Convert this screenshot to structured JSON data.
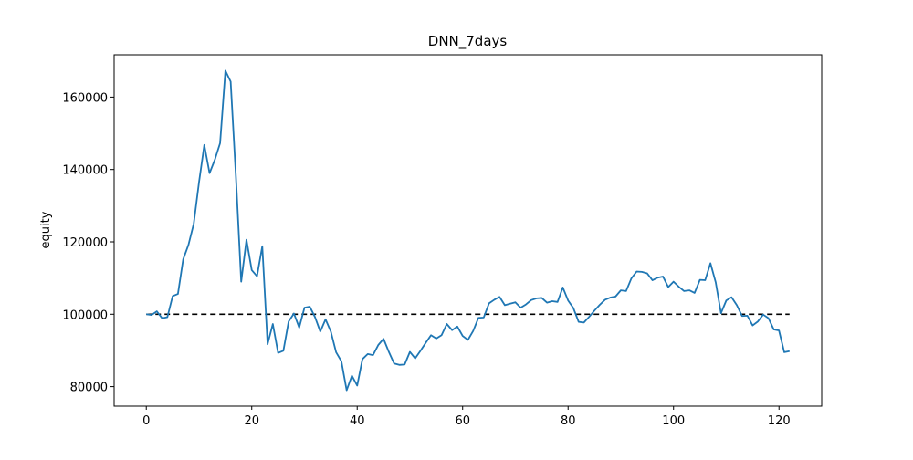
{
  "chart_data": {
    "type": "line",
    "title": "DNN_7days",
    "y_label": "equity",
    "x": [
      0,
      1,
      2,
      3,
      4,
      5,
      6,
      7,
      8,
      9,
      10,
      11,
      12,
      13,
      14,
      15,
      16,
      17,
      18,
      19,
      20,
      21,
      22,
      23,
      24,
      25,
      26,
      27,
      28,
      29,
      30,
      31,
      32,
      33,
      34,
      35,
      36,
      37,
      38,
      39,
      40,
      41,
      42,
      43,
      44,
      45,
      46,
      47,
      48,
      49,
      50,
      51,
      52,
      53,
      54,
      55,
      56,
      57,
      58,
      59,
      60,
      61,
      62,
      63,
      64,
      65,
      66,
      67,
      68,
      69,
      70,
      71,
      72,
      73,
      74,
      75,
      76,
      77,
      78,
      79,
      80,
      81,
      82,
      83,
      84,
      85,
      86,
      87,
      88,
      89,
      90,
      91,
      92,
      93,
      94,
      95,
      96,
      97,
      98,
      99,
      100,
      101,
      102,
      103,
      104,
      105,
      106,
      107,
      108,
      109,
      110,
      111,
      112,
      113,
      114,
      115,
      116,
      117,
      118,
      119,
      120,
      121,
      122
    ],
    "series": [
      {
        "color": "#1f77b4",
        "values": [
          100000,
          99800,
          100800,
          98900,
          99200,
          105000,
          105600,
          115200,
          119200,
          125000,
          136500,
          146800,
          139000,
          142700,
          147300,
          167300,
          164300,
          138000,
          109000,
          120600,
          112200,
          110500,
          118800,
          91700,
          97300,
          89300,
          89900,
          98000,
          100200,
          96300,
          101800,
          102100,
          99200,
          95200,
          98600,
          95200,
          89500,
          87000,
          79000,
          83000,
          80300,
          87600,
          89000,
          88700,
          91500,
          93200,
          89600,
          86400,
          86000,
          86100,
          89600,
          87800,
          89900,
          92100,
          94200,
          93300,
          94200,
          97300,
          95600,
          96600,
          94000,
          92900,
          95400,
          99000,
          99100,
          103000,
          104000,
          104800,
          102500,
          102900,
          103300,
          101800,
          102700,
          103900,
          104400,
          104500,
          103200,
          103600,
          103400,
          107400,
          103800,
          101700,
          97900,
          97700,
          99300,
          101000,
          102600,
          104000,
          104600,
          104900,
          106600,
          106400,
          109900,
          111800,
          111700,
          111300,
          109400,
          110100,
          110400,
          107500,
          109000,
          107600,
          106400,
          106600,
          105900,
          109500,
          109400,
          114100,
          108800,
          100300,
          103800,
          104700,
          102500,
          99500,
          99600,
          96900,
          98000,
          99900,
          98900,
          95800,
          95500,
          89500,
          89800
        ]
      }
    ],
    "hline": {
      "value": 100000,
      "xmin": 0,
      "xmax": 122,
      "color": "#000000",
      "dashed": true
    },
    "xlim": [
      -6.1,
      128.1
    ],
    "xticks": [
      0,
      20,
      40,
      60,
      80,
      100,
      120
    ],
    "ylim": [
      74600,
      171700
    ],
    "yticks": [
      80000,
      100000,
      120000,
      140000,
      160000
    ]
  }
}
